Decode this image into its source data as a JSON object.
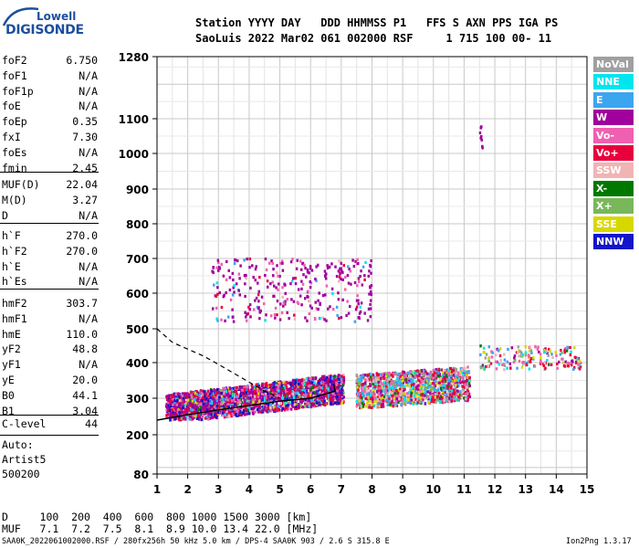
{
  "logo": {
    "top": "Lowell",
    "bottom": "DIGISONDE"
  },
  "header": {
    "labels": "Station YYYY DAY   DDD HHMMSS P1   FFS S AXN PPS IGA PS",
    "values": "SaoLuis 2022 Mar02 061 002000 RSF     1 715 100 00- 11"
  },
  "params_group1": [
    {
      "name": "foF2",
      "value": "6.750"
    },
    {
      "name": "foF1",
      "value": "N/A"
    },
    {
      "name": "foF1p",
      "value": "N/A"
    },
    {
      "name": "foE",
      "value": "N/A"
    },
    {
      "name": "foEp",
      "value": "0.35"
    },
    {
      "name": "fxI",
      "value": "7.30"
    },
    {
      "name": "foEs",
      "value": "N/A"
    },
    {
      "name": "fmin",
      "value": "2.45"
    }
  ],
  "params_group2": [
    {
      "name": "MUF(D)",
      "value": "22.04"
    },
    {
      "name": "M(D)",
      "value": "3.27"
    },
    {
      "name": "D",
      "value": "N/A"
    }
  ],
  "params_group3": [
    {
      "name": "h`F",
      "value": "270.0"
    },
    {
      "name": "h`F2",
      "value": "270.0"
    },
    {
      "name": "h`E",
      "value": "N/A"
    },
    {
      "name": "h`Es",
      "value": "N/A"
    }
  ],
  "params_group4": [
    {
      "name": "hmF2",
      "value": "303.7"
    },
    {
      "name": "hmF1",
      "value": "N/A"
    },
    {
      "name": "hmE",
      "value": "110.0"
    },
    {
      "name": "yF2",
      "value": "48.8"
    },
    {
      "name": "yF1",
      "value": "N/A"
    },
    {
      "name": "yE",
      "value": "20.0"
    },
    {
      "name": "B0",
      "value": "44.1"
    },
    {
      "name": "B1",
      "value": "3.04"
    }
  ],
  "clevel": {
    "name": "C-level",
    "value": "44"
  },
  "autoscale": {
    "line1": "Auto:",
    "line2": "Artist5",
    "line3": "500200"
  },
  "legend": [
    {
      "label": "NoVal",
      "color": "#a0a0a0",
      "text_color": "#ffffff"
    },
    {
      "label": "NNE",
      "color": "#00e5ee",
      "text_color": "#ffffff"
    },
    {
      "label": "E",
      "color": "#3ca5f0",
      "text_color": "#ffffff"
    },
    {
      "label": "W",
      "color": "#a0009c",
      "text_color": "#ffffff"
    },
    {
      "label": "Vo-",
      "color": "#f060b0",
      "text_color": "#ffffff"
    },
    {
      "label": "Vo+",
      "color": "#e8003c",
      "text_color": "#ffffff"
    },
    {
      "label": "SSW",
      "color": "#f0b4b4",
      "text_color": "#ffffff"
    },
    {
      "label": "X-",
      "color": "#007800",
      "text_color": "#ffffff"
    },
    {
      "label": "X+",
      "color": "#78b85a",
      "text_color": "#ffffff"
    },
    {
      "label": "SSE",
      "color": "#d8d800",
      "text_color": "#ffffff"
    },
    {
      "label": "NNW",
      "color": "#1414c8",
      "text_color": "#ffffff"
    }
  ],
  "bottom": {
    "d_row": "D     100  200  400  600  800 1000 1500 3000 [km]",
    "muf_row": "MUF   7.1  7.2  7.5  8.1  8.9 10.0 13.4 22.0 [MHz]"
  },
  "footer": {
    "left": "SAA0K_2022061002000.RSF / 280fx256h 50 kHz 5.0 km / DPS-4 SAA0K 903 / 2.6 S 315.8 E",
    "right": "Ion2Png 1.3.17"
  },
  "chart_data": {
    "type": "scatter",
    "title": "",
    "xlabel": "",
    "ylabel": "",
    "xlim": [
      1,
      15
    ],
    "ylim": [
      80,
      1280
    ],
    "x_ticks": [
      1,
      2,
      3,
      4,
      5,
      6,
      7,
      8,
      9,
      10,
      11,
      12,
      13,
      14,
      15
    ],
    "y_ticks": [
      80,
      200,
      300,
      400,
      500,
      600,
      700,
      800,
      900,
      1000,
      1100,
      1280
    ],
    "y_scale": "nonlinear (virtual height, compressed at top)",
    "grid": true,
    "echo_clusters": [
      {
        "name": "F-layer main trace",
        "x_range": [
          1.3,
          7.1
        ],
        "y_range": [
          240,
          420
        ]
      },
      {
        "name": "F-layer high frequency trace",
        "x_range": [
          7.5,
          11.2
        ],
        "y_range": [
          270,
          480
        ]
      },
      {
        "name": "F-layer spread",
        "x_range": [
          11.5,
          14.8
        ],
        "y_range": [
          380,
          450
        ]
      },
      {
        "name": "second hop echoes",
        "x_range": [
          2.8,
          8.0
        ],
        "y_range": [
          520,
          700
        ]
      },
      {
        "name": "isolated echoes",
        "x_range": [
          11.5,
          11.6
        ],
        "y_range": [
          1000,
          1080
        ]
      }
    ],
    "fitted_profile": {
      "solid_points": [
        [
          1.0,
          240
        ],
        [
          2.0,
          255
        ],
        [
          3.0,
          268
        ],
        [
          4.0,
          280
        ],
        [
          5.0,
          292
        ],
        [
          6.0,
          300
        ],
        [
          6.8,
          320
        ],
        [
          6.75,
          340
        ]
      ],
      "dashed_points": [
        [
          1.0,
          500
        ],
        [
          1.5,
          460
        ],
        [
          2.0,
          440
        ],
        [
          2.5,
          420
        ],
        [
          3.0,
          395
        ],
        [
          3.5,
          370
        ],
        [
          4.0,
          345
        ],
        [
          4.5,
          320
        ],
        [
          5.0,
          300
        ]
      ]
    }
  }
}
